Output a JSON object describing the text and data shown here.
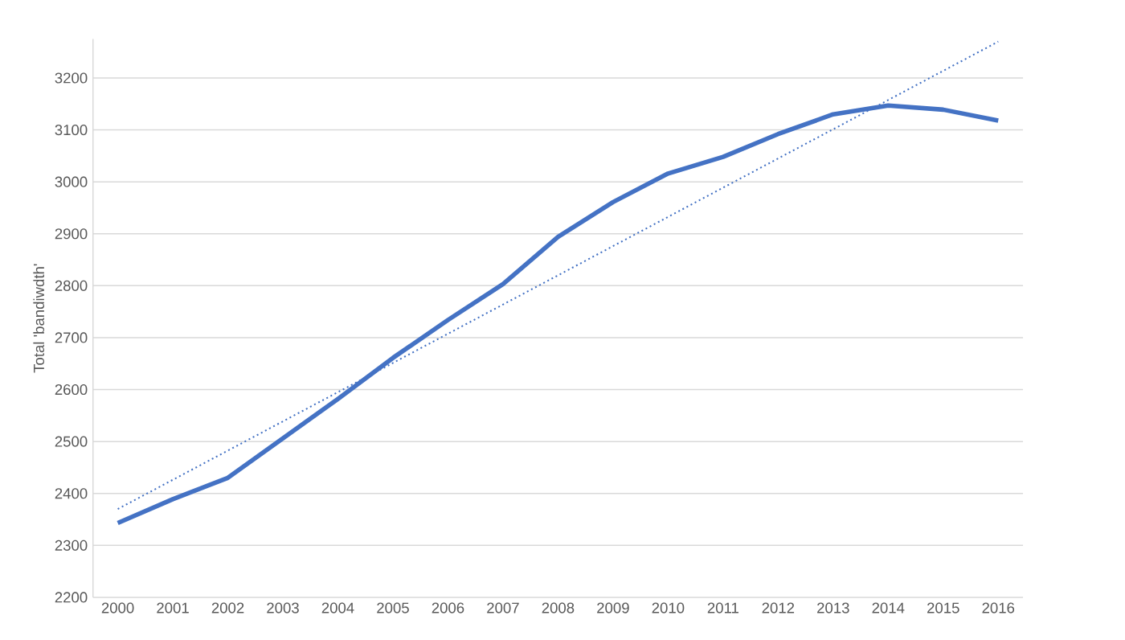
{
  "chart_data": {
    "type": "line",
    "ylabel": "Total 'bandiwdth'",
    "x": [
      2000,
      2001,
      2002,
      2003,
      2004,
      2005,
      2006,
      2007,
      2008,
      2009,
      2010,
      2011,
      2012,
      2013,
      2014,
      2015,
      2016
    ],
    "xlim": [
      1999.55,
      2016.45
    ],
    "xticks": [
      2000,
      2001,
      2002,
      2003,
      2004,
      2005,
      2006,
      2007,
      2008,
      2009,
      2010,
      2011,
      2012,
      2013,
      2014,
      2015,
      2016
    ],
    "ylim": [
      2200,
      3275
    ],
    "yticks": [
      2200,
      2300,
      2400,
      2500,
      2600,
      2700,
      2800,
      2900,
      3000,
      3100,
      3200
    ],
    "grid": "y",
    "series": [
      {
        "color": "#4472c4",
        "line_style": "solid",
        "values": [
          2343,
          2389,
          2430,
          2506,
          2582,
          2661,
          2734,
          2803,
          2894,
          2961,
          3016,
          3048,
          3092,
          3130,
          3147,
          3139,
          3118
        ]
      },
      {
        "color": "#4472c4",
        "line_style": "dotted",
        "x": [
          2000,
          2016
        ],
        "values": [
          2370,
          3270
        ]
      }
    ]
  }
}
